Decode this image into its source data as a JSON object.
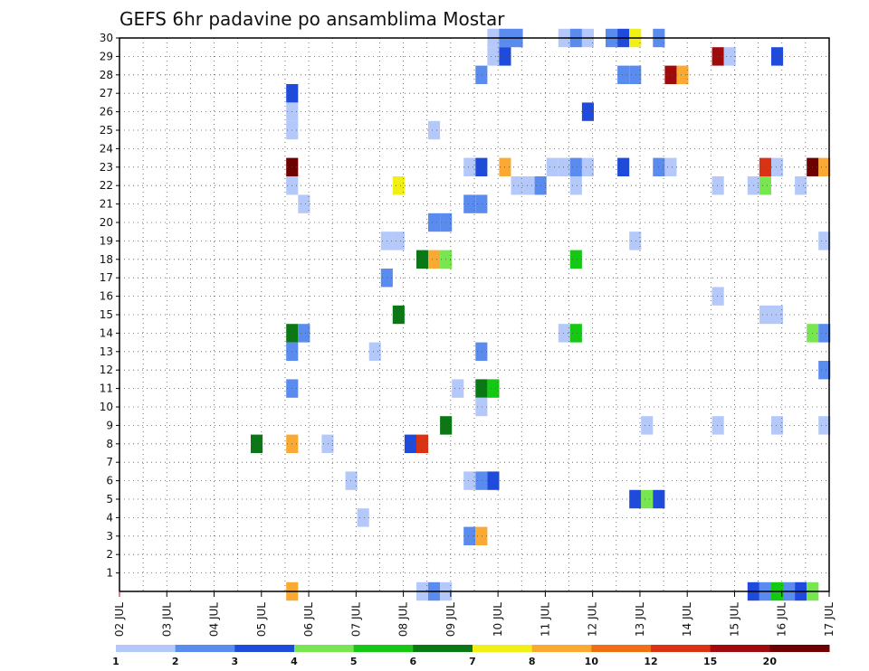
{
  "chart_data": {
    "type": "heatmap",
    "title": "GEFS 6hr padavine po ansamblima Mostar",
    "xlabel": "",
    "ylabel": "",
    "y_ticks": [
      "1",
      "2",
      "3",
      "4",
      "5",
      "6",
      "7",
      "8",
      "9",
      "10",
      "11",
      "12",
      "13",
      "14",
      "15",
      "16",
      "17",
      "18",
      "19",
      "20",
      "21",
      "22",
      "23",
      "24",
      "25",
      "26",
      "27",
      "28",
      "29",
      "30"
    ],
    "x_ticks": [
      "02 JUL",
      "03 JUL",
      "04 JUL",
      "05 JUL",
      "06 JUL",
      "07 JUL",
      "08 JUL",
      "09 JUL",
      "10 JUL",
      "11 JUL",
      "12 JUL",
      "13 JUL",
      "14 JUL",
      "15 JUL",
      "16 JUL",
      "17 JUL"
    ],
    "xlim_days": [
      2,
      17
    ],
    "ylim": [
      0,
      30
    ],
    "grid": true,
    "colorbar": {
      "labels": [
        "1",
        "2",
        "3",
        "4",
        "5",
        "6",
        "7",
        "8",
        "10",
        "12",
        "15",
        "20"
      ],
      "colors": [
        "#b4c8fa",
        "#5a8cf0",
        "#1e4bdc",
        "#78e650",
        "#14c814",
        "#0a7814",
        "#f0f014",
        "#faaa32",
        "#f06e14",
        "#dc3214",
        "#a00a0a",
        "#6e0000"
      ]
    },
    "points": [
      {
        "member": 30,
        "day": 9.9,
        "level": 1
      },
      {
        "member": 30,
        "day": 10.15,
        "level": 2
      },
      {
        "member": 30,
        "day": 10.4,
        "level": 2
      },
      {
        "member": 30,
        "day": 11.4,
        "level": 1
      },
      {
        "member": 30,
        "day": 11.65,
        "level": 2
      },
      {
        "member": 30,
        "day": 11.9,
        "level": 1
      },
      {
        "member": 30,
        "day": 12.4,
        "level": 2
      },
      {
        "member": 30,
        "day": 12.65,
        "level": 3
      },
      {
        "member": 30,
        "day": 12.9,
        "level": 7
      },
      {
        "member": 30,
        "day": 13.4,
        "level": 2
      },
      {
        "member": 29,
        "day": 9.9,
        "level": 1
      },
      {
        "member": 29,
        "day": 10.15,
        "level": 3
      },
      {
        "member": 29,
        "day": 14.65,
        "level": 11
      },
      {
        "member": 29,
        "day": 14.9,
        "level": 1
      },
      {
        "member": 29,
        "day": 15.9,
        "level": 3
      },
      {
        "member": 28,
        "day": 9.65,
        "level": 2
      },
      {
        "member": 28,
        "day": 12.65,
        "level": 2
      },
      {
        "member": 28,
        "day": 12.9,
        "level": 2
      },
      {
        "member": 28,
        "day": 13.65,
        "level": 11
      },
      {
        "member": 28,
        "day": 13.9,
        "level": 8
      },
      {
        "member": 27,
        "day": 5.65,
        "level": 3
      },
      {
        "member": 26,
        "day": 5.65,
        "level": 1
      },
      {
        "member": 26,
        "day": 11.9,
        "level": 3
      },
      {
        "member": 25,
        "day": 5.65,
        "level": 1
      },
      {
        "member": 25,
        "day": 8.65,
        "level": 1
      },
      {
        "member": 23,
        "day": 5.65,
        "level": 12
      },
      {
        "member": 23,
        "day": 9.4,
        "level": 1
      },
      {
        "member": 23,
        "day": 9.65,
        "level": 3
      },
      {
        "member": 23,
        "day": 10.15,
        "level": 8
      },
      {
        "member": 23,
        "day": 11.15,
        "level": 1
      },
      {
        "member": 23,
        "day": 11.4,
        "level": 1
      },
      {
        "member": 23,
        "day": 11.65,
        "level": 2
      },
      {
        "member": 23,
        "day": 11.9,
        "level": 1
      },
      {
        "member": 23,
        "day": 12.65,
        "level": 3
      },
      {
        "member": 23,
        "day": 13.4,
        "level": 2
      },
      {
        "member": 23,
        "day": 13.65,
        "level": 1
      },
      {
        "member": 23,
        "day": 15.65,
        "level": 10
      },
      {
        "member": 23,
        "day": 15.9,
        "level": 1
      },
      {
        "member": 23,
        "day": 16.65,
        "level": 12
      },
      {
        "member": 23,
        "day": 16.9,
        "level": 8
      },
      {
        "member": 22,
        "day": 5.65,
        "level": 1
      },
      {
        "member": 22,
        "day": 7.9,
        "level": 7
      },
      {
        "member": 22,
        "day": 10.4,
        "level": 1
      },
      {
        "member": 22,
        "day": 10.65,
        "level": 1
      },
      {
        "member": 22,
        "day": 10.9,
        "level": 2
      },
      {
        "member": 22,
        "day": 11.65,
        "level": 1
      },
      {
        "member": 22,
        "day": 14.65,
        "level": 1
      },
      {
        "member": 22,
        "day": 15.4,
        "level": 1
      },
      {
        "member": 22,
        "day": 15.65,
        "level": 4
      },
      {
        "member": 22,
        "day": 16.4,
        "level": 1
      },
      {
        "member": 21,
        "day": 5.9,
        "level": 1
      },
      {
        "member": 21,
        "day": 9.4,
        "level": 2
      },
      {
        "member": 21,
        "day": 9.65,
        "level": 2
      },
      {
        "member": 20,
        "day": 8.65,
        "level": 2
      },
      {
        "member": 20,
        "day": 8.9,
        "level": 2
      },
      {
        "member": 19,
        "day": 7.65,
        "level": 1
      },
      {
        "member": 19,
        "day": 7.9,
        "level": 1
      },
      {
        "member": 19,
        "day": 12.9,
        "level": 1
      },
      {
        "member": 19,
        "day": 16.9,
        "level": 1
      },
      {
        "member": 18,
        "day": 8.4,
        "level": 6
      },
      {
        "member": 18,
        "day": 8.65,
        "level": 8
      },
      {
        "member": 18,
        "day": 8.9,
        "level": 4
      },
      {
        "member": 18,
        "day": 11.65,
        "level": 5
      },
      {
        "member": 17,
        "day": 7.65,
        "level": 2
      },
      {
        "member": 16,
        "day": 14.65,
        "level": 1
      },
      {
        "member": 15,
        "day": 7.9,
        "level": 6
      },
      {
        "member": 15,
        "day": 15.65,
        "level": 1
      },
      {
        "member": 15,
        "day": 15.9,
        "level": 1
      },
      {
        "member": 14,
        "day": 5.65,
        "level": 6
      },
      {
        "member": 14,
        "day": 5.9,
        "level": 2
      },
      {
        "member": 14,
        "day": 11.4,
        "level": 1
      },
      {
        "member": 14,
        "day": 11.65,
        "level": 5
      },
      {
        "member": 14,
        "day": 16.65,
        "level": 4
      },
      {
        "member": 14,
        "day": 16.9,
        "level": 2
      },
      {
        "member": 13,
        "day": 5.65,
        "level": 2
      },
      {
        "member": 13,
        "day": 7.4,
        "level": 1
      },
      {
        "member": 13,
        "day": 9.65,
        "level": 2
      },
      {
        "member": 12,
        "day": 16.9,
        "level": 2
      },
      {
        "member": 11,
        "day": 5.65,
        "level": 2
      },
      {
        "member": 11,
        "day": 9.15,
        "level": 1
      },
      {
        "member": 11,
        "day": 9.65,
        "level": 6
      },
      {
        "member": 11,
        "day": 9.9,
        "level": 5
      },
      {
        "member": 10,
        "day": 9.65,
        "level": 1
      },
      {
        "member": 9,
        "day": 8.9,
        "level": 6
      },
      {
        "member": 9,
        "day": 13.15,
        "level": 1
      },
      {
        "member": 9,
        "day": 14.65,
        "level": 1
      },
      {
        "member": 9,
        "day": 15.9,
        "level": 1
      },
      {
        "member": 9,
        "day": 16.9,
        "level": 1
      },
      {
        "member": 8,
        "day": 4.9,
        "level": 6
      },
      {
        "member": 8,
        "day": 5.65,
        "level": 8
      },
      {
        "member": 8,
        "day": 6.4,
        "level": 1
      },
      {
        "member": 8,
        "day": 8.15,
        "level": 3
      },
      {
        "member": 8,
        "day": 8.4,
        "level": 10
      },
      {
        "member": 6,
        "day": 6.9,
        "level": 1
      },
      {
        "member": 6,
        "day": 9.4,
        "level": 1
      },
      {
        "member": 6,
        "day": 9.65,
        "level": 2
      },
      {
        "member": 6,
        "day": 9.9,
        "level": 3
      },
      {
        "member": 5,
        "day": 12.9,
        "level": 3
      },
      {
        "member": 5,
        "day": 13.15,
        "level": 4
      },
      {
        "member": 5,
        "day": 13.4,
        "level": 3
      },
      {
        "member": 4,
        "day": 7.15,
        "level": 1
      },
      {
        "member": 3,
        "day": 9.4,
        "level": 2
      },
      {
        "member": 3,
        "day": 9.65,
        "level": 8
      },
      {
        "member": 0,
        "day": 5.65,
        "level": 8
      },
      {
        "member": 0,
        "day": 8.4,
        "level": 1
      },
      {
        "member": 0,
        "day": 8.65,
        "level": 2
      },
      {
        "member": 0,
        "day": 8.9,
        "level": 1
      },
      {
        "member": 0,
        "day": 15.4,
        "level": 3
      },
      {
        "member": 0,
        "day": 15.65,
        "level": 2
      },
      {
        "member": 0,
        "day": 15.9,
        "level": 5
      },
      {
        "member": 0,
        "day": 16.15,
        "level": 2
      },
      {
        "member": 0,
        "day": 16.4,
        "level": 3
      },
      {
        "member": 0,
        "day": 16.65,
        "level": 4
      }
    ]
  }
}
